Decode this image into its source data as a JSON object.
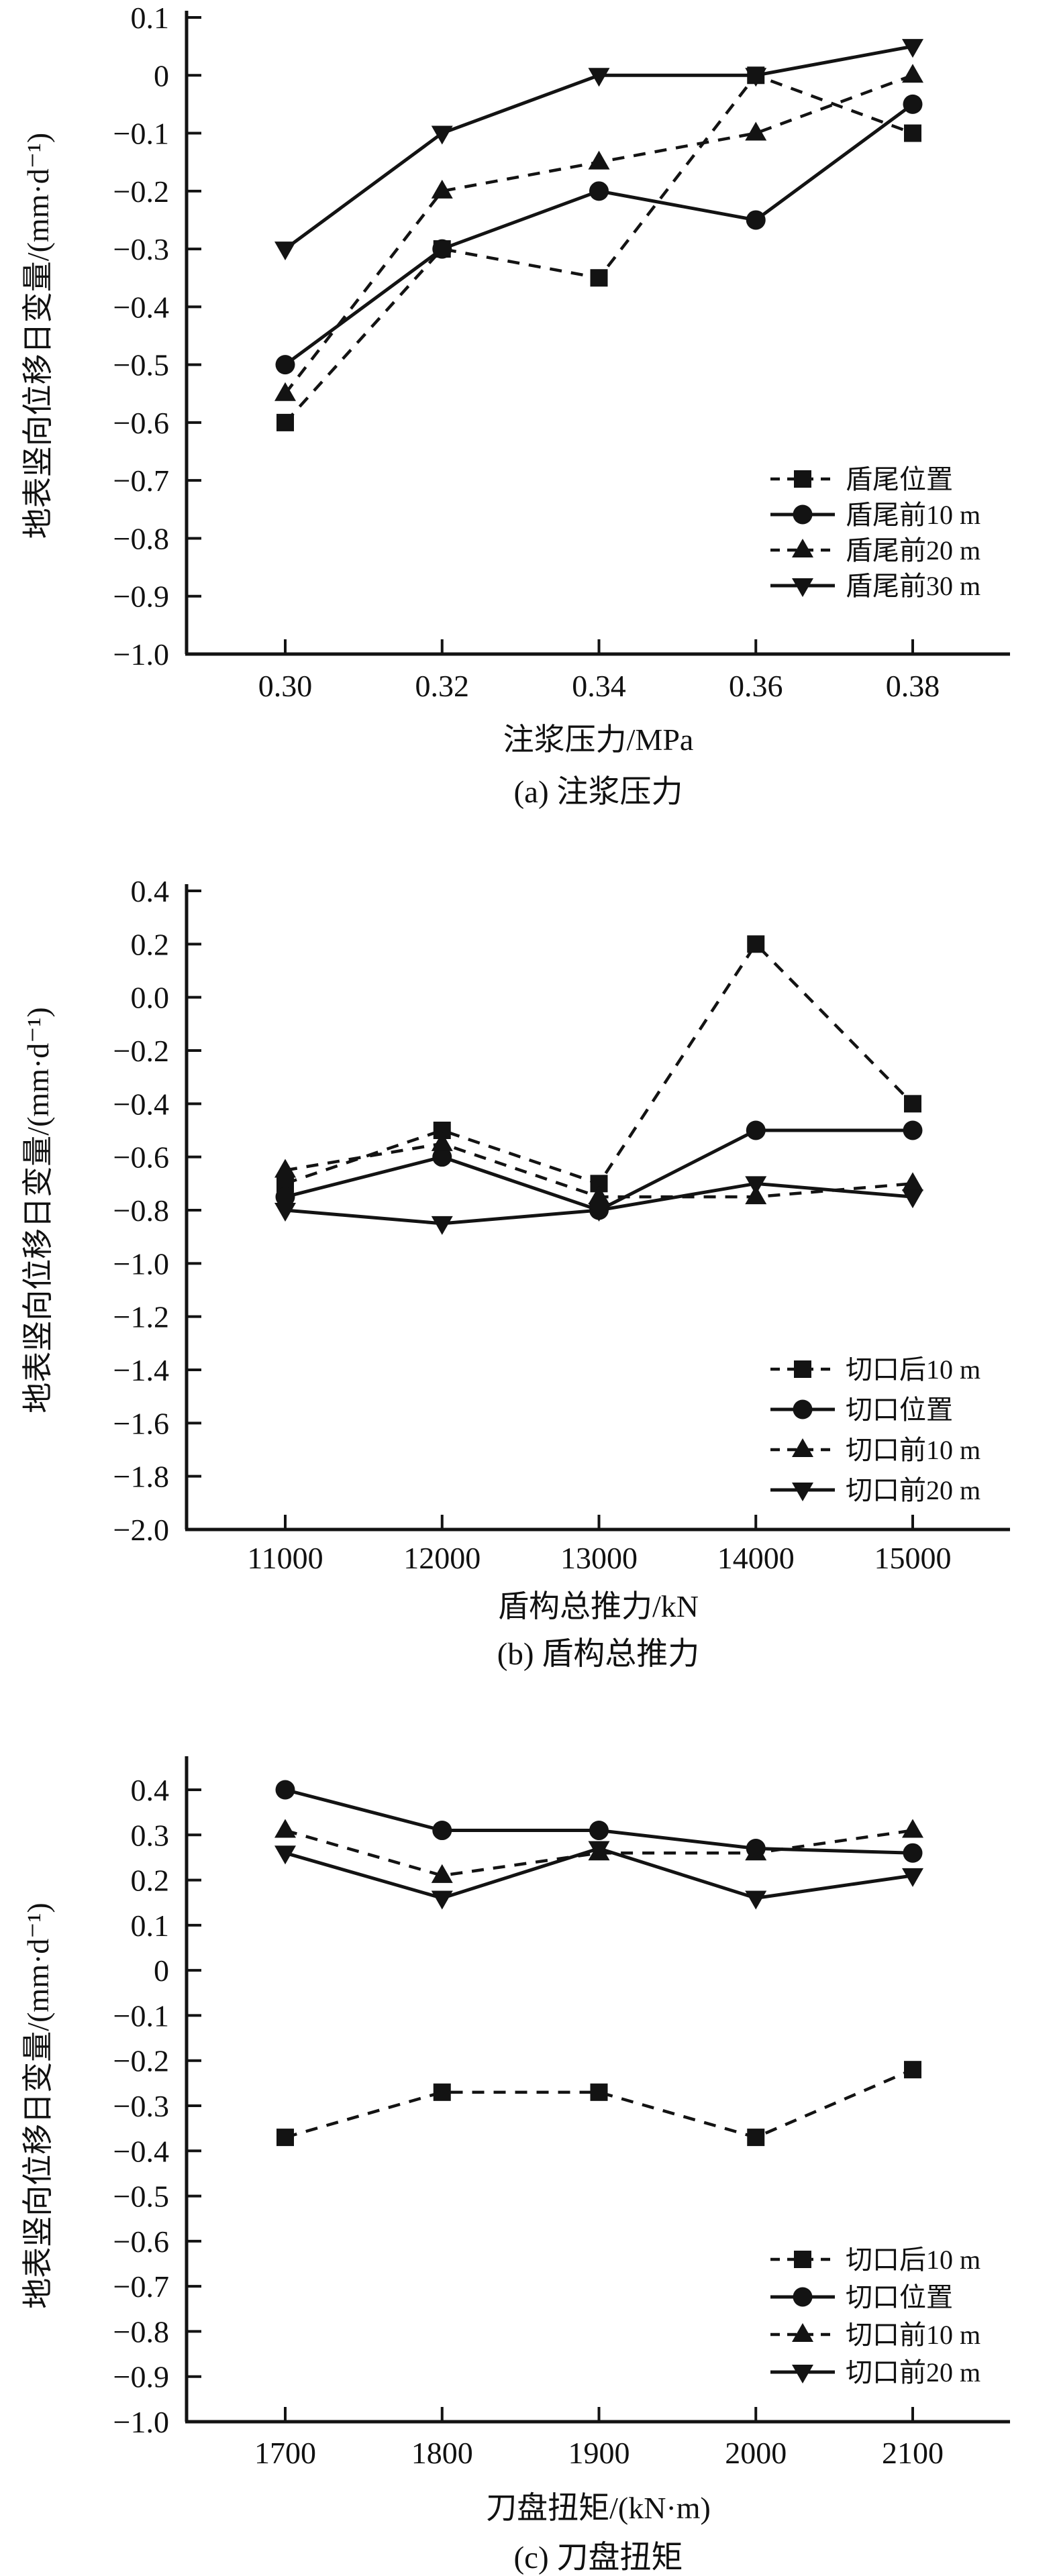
{
  "figure": {
    "background": "#ffffff",
    "ink": "#131313"
  },
  "chart_data": [
    {
      "type": "line",
      "caption": "(a) 注浆压力",
      "xlabel": "注浆压力/MPa",
      "ylabel": "地表竖向位移日变量/(mm·d⁻¹)",
      "x_tick_labels": [
        "0.30",
        "0.32",
        "0.34",
        "0.36",
        "0.38"
      ],
      "x_values": [
        0.3,
        0.32,
        0.34,
        0.36,
        0.38
      ],
      "y_tick_labels": [
        "0.1",
        "0",
        "−0.1",
        "−0.2",
        "−0.3",
        "−0.4",
        "−0.5",
        "−0.6",
        "−0.7",
        "−0.8",
        "−0.9",
        "−1.0"
      ],
      "y_tick_values": [
        0.1,
        0,
        -0.1,
        -0.2,
        -0.3,
        -0.4,
        -0.5,
        -0.6,
        -0.7,
        -0.8,
        -0.9,
        -1.0
      ],
      "ylim": [
        -1.0,
        0.1
      ],
      "grid": false,
      "legend_position": "inside-lower-right",
      "series": [
        {
          "name": "盾尾位置",
          "marker": "square",
          "line": "dashed",
          "values": [
            -0.6,
            -0.3,
            -0.35,
            0.0,
            -0.1
          ]
        },
        {
          "name": "盾尾前10 m",
          "marker": "circle",
          "line": "solid",
          "values": [
            -0.5,
            -0.3,
            -0.2,
            -0.25,
            -0.05
          ]
        },
        {
          "name": "盾尾前20 m",
          "marker": "triangle-up",
          "line": "dashed",
          "values": [
            -0.55,
            -0.2,
            -0.15,
            -0.1,
            0.0
          ]
        },
        {
          "name": "盾尾前30 m",
          "marker": "triangle-down",
          "line": "solid",
          "values": [
            -0.3,
            -0.1,
            0.0,
            0.0,
            0.05
          ]
        }
      ]
    },
    {
      "type": "line",
      "caption": "(b) 盾构总推力",
      "xlabel": "盾构总推力/kN",
      "ylabel": "地表竖向位移日变量/(mm·d⁻¹)",
      "x_tick_labels": [
        "11000",
        "12000",
        "13000",
        "14000",
        "15000"
      ],
      "x_values": [
        11000,
        12000,
        13000,
        14000,
        15000
      ],
      "y_tick_labels": [
        "0.4",
        "0.2",
        "0.0",
        "−0.2",
        "−0.4",
        "−0.6",
        "−0.8",
        "−1.0",
        "−1.2",
        "−1.4",
        "−1.6",
        "−1.8",
        "−2.0"
      ],
      "y_tick_values": [
        0.4,
        0.2,
        0.0,
        -0.2,
        -0.4,
        -0.6,
        -0.8,
        -1.0,
        -1.2,
        -1.4,
        -1.6,
        -1.8,
        -2.0
      ],
      "ylim": [
        -2.0,
        0.4
      ],
      "grid": false,
      "legend_position": "inside-right",
      "series": [
        {
          "name": "切口后10 m",
          "marker": "square",
          "line": "dashed",
          "values": [
            -0.7,
            -0.5,
            -0.7,
            0.2,
            -0.4
          ]
        },
        {
          "name": "切口位置",
          "marker": "circle",
          "line": "solid",
          "values": [
            -0.75,
            -0.6,
            -0.8,
            -0.5,
            -0.5
          ]
        },
        {
          "name": "切口前10 m",
          "marker": "triangle-up",
          "line": "dashed",
          "values": [
            -0.65,
            -0.55,
            -0.75,
            -0.75,
            -0.7
          ]
        },
        {
          "name": "切口前20 m",
          "marker": "triangle-down",
          "line": "solid",
          "values": [
            -0.8,
            -0.85,
            -0.8,
            -0.7,
            -0.75
          ]
        }
      ]
    },
    {
      "type": "line",
      "caption": "(c) 刀盘扭矩",
      "xlabel": "刀盘扭矩/(kN·m)",
      "ylabel": "地表竖向位移日变量/(mm·d⁻¹)",
      "x_tick_labels": [
        "1700",
        "1800",
        "1900",
        "2000",
        "2100"
      ],
      "x_values": [
        1700,
        1800,
        1900,
        2000,
        2100
      ],
      "y_tick_labels": [
        "0.4",
        "0.3",
        "0.2",
        "0.1",
        "0",
        "−0.1",
        "−0.2",
        "−0.3",
        "−0.4",
        "−0.5",
        "−0.6",
        "−0.7",
        "−0.8",
        "−0.9",
        "−1.0"
      ],
      "y_tick_values": [
        0.4,
        0.3,
        0.2,
        0.1,
        0,
        -0.1,
        -0.2,
        -0.3,
        -0.4,
        -0.5,
        -0.6,
        -0.7,
        -0.8,
        -0.9,
        -1.0
      ],
      "ylim": [
        -1.0,
        0.4
      ],
      "grid": false,
      "legend_position": "inside-lower-right",
      "series": [
        {
          "name": "切口后10 m",
          "marker": "square",
          "line": "dashed",
          "values": [
            -0.37,
            -0.27,
            -0.27,
            -0.37,
            -0.22
          ]
        },
        {
          "name": "切口位置",
          "marker": "circle",
          "line": "solid",
          "values": [
            0.4,
            0.31,
            0.31,
            0.27,
            0.26
          ]
        },
        {
          "name": "切口前10 m",
          "marker": "triangle-up",
          "line": "dashed",
          "values": [
            0.31,
            0.21,
            0.26,
            0.26,
            0.31
          ]
        },
        {
          "name": "切口前20 m",
          "marker": "triangle-down",
          "line": "solid",
          "values": [
            0.26,
            0.16,
            0.27,
            0.16,
            0.21
          ]
        }
      ]
    }
  ]
}
